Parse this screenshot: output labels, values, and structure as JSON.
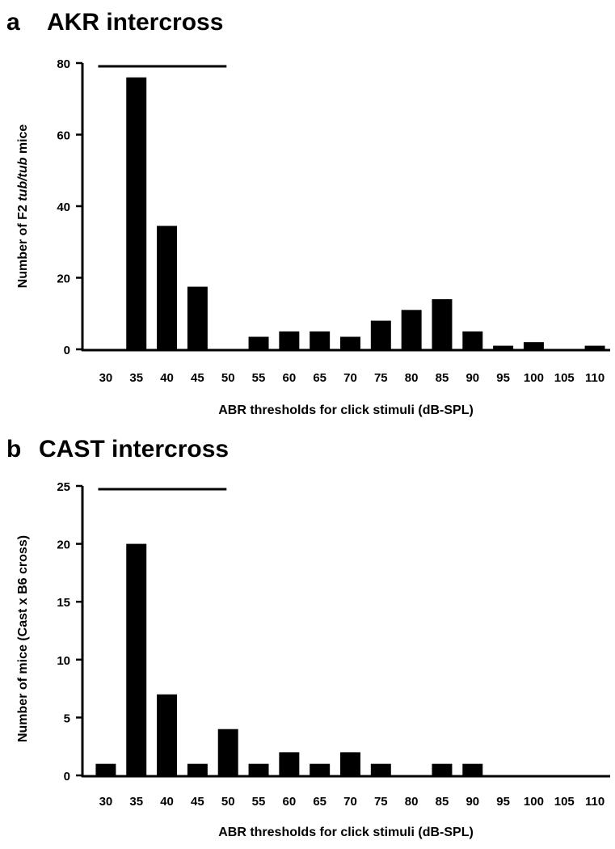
{
  "figure": {
    "background": "#ffffff",
    "bar_color": "#000000"
  },
  "chart_data": [
    {
      "type": "bar",
      "panel": "a",
      "title": "AKR intercross",
      "xlabel": "ABR thresholds for click stimuli (dB-SPL)",
      "ylabel_parts": [
        {
          "text": "Number of F2 ",
          "italic": false
        },
        {
          "text": "tub/tub",
          "italic": true
        },
        {
          "text": " mice",
          "italic": false
        }
      ],
      "categories": [
        "30",
        "35",
        "40",
        "45",
        "50",
        "55",
        "60",
        "65",
        "70",
        "75",
        "80",
        "85",
        "90",
        "95",
        "100",
        "105",
        "110"
      ],
      "values": [
        0,
        76,
        34.5,
        17.5,
        0,
        3.5,
        5,
        5,
        3.5,
        8,
        11,
        14,
        5,
        1,
        2,
        0,
        1
      ],
      "ylim": [
        0,
        80
      ],
      "yticks": [
        0,
        20,
        40,
        60,
        80
      ],
      "bracket_range": [
        "30",
        "50"
      ]
    },
    {
      "type": "bar",
      "panel": "b",
      "title": "CAST intercross",
      "xlabel": "ABR thresholds for click stimuli (dB-SPL)",
      "ylabel_parts": [
        {
          "text": "Number of mice (Cast x B6 cross)",
          "italic": false
        }
      ],
      "categories": [
        "30",
        "35",
        "40",
        "45",
        "50",
        "55",
        "60",
        "65",
        "70",
        "75",
        "80",
        "85",
        "90",
        "95",
        "100",
        "105",
        "110"
      ],
      "values": [
        1,
        20,
        7,
        1,
        4,
        1,
        2,
        1,
        2,
        1,
        0,
        1,
        1,
        0,
        0,
        0,
        0
      ],
      "ylim": [
        0,
        25
      ],
      "yticks": [
        0,
        5,
        10,
        15,
        20,
        25
      ],
      "bracket_range": [
        "30",
        "50"
      ]
    }
  ]
}
